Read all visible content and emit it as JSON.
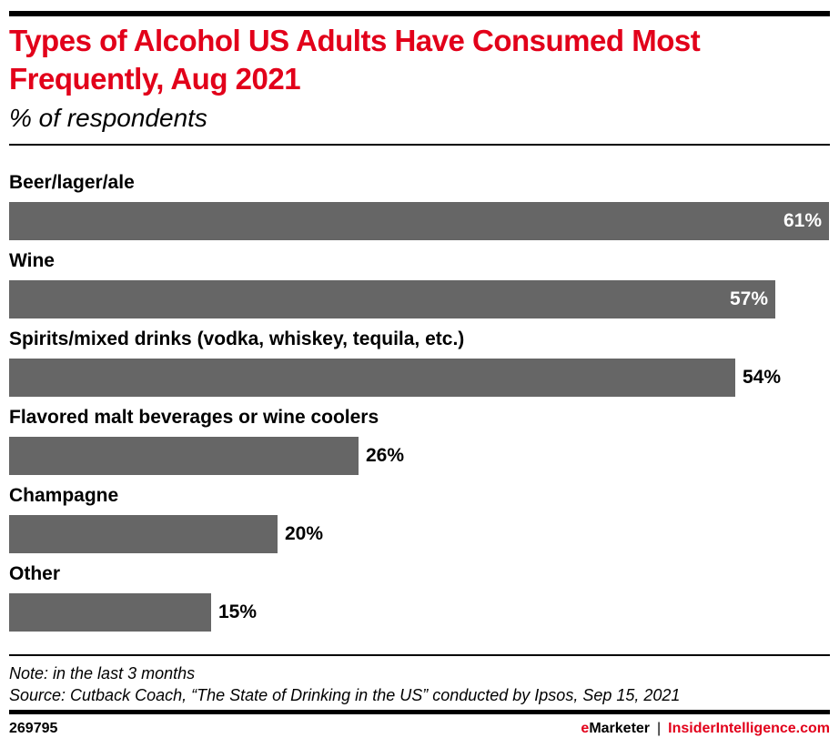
{
  "header": {
    "title": "Types of Alcohol US Adults Have Consumed Most Frequently, Aug 2021",
    "subtitle": "% of respondents"
  },
  "chart_data": {
    "type": "bar",
    "orientation": "horizontal",
    "title": "Types of Alcohol US Adults Have Consumed Most Frequently, Aug 2021",
    "subtitle": "% of respondents",
    "xlabel": "",
    "ylabel": "",
    "categories": [
      "Beer/lager/ale",
      "Wine",
      "Spirits/mixed drinks (vodka, whiskey, tequila, etc.)",
      "Flavored malt beverages or wine coolers",
      "Champagne",
      "Other"
    ],
    "values": [
      61,
      57,
      54,
      26,
      20,
      15
    ],
    "value_labels": [
      "61%",
      "57%",
      "54%",
      "26%",
      "20%",
      "15%"
    ],
    "units": "%",
    "xlim": [
      0,
      61
    ],
    "grid": false,
    "legend": "none",
    "bar_color": "#666666"
  },
  "footer": {
    "note": "Note: in the last 3 months",
    "source": "Source: Cutback Coach, “The State of Drinking in the US” conducted by Ipsos, Sep 15, 2021",
    "chart_id": "269795",
    "brand_e": "e",
    "brand_rest": "Marketer",
    "separator": "|",
    "brand_site": "InsiderIntelligence.com"
  },
  "colors": {
    "accent": "#e2001a",
    "bar": "#666666",
    "text": "#000000"
  }
}
